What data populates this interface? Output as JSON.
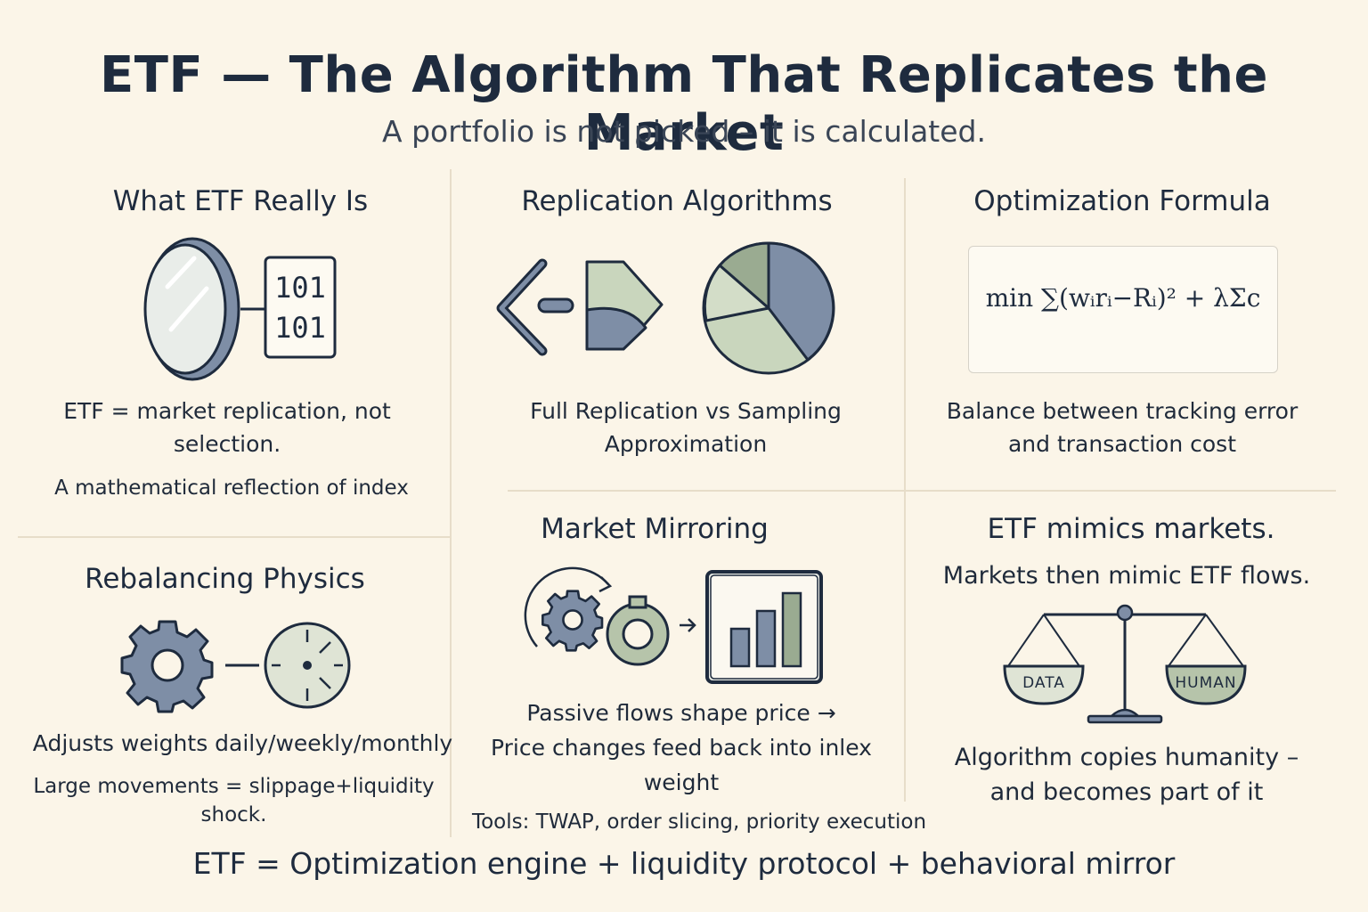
{
  "title": "ETF — The Algorithm That Replicates the Market",
  "subtitle": "A portfolio is not picked – it is calculated.",
  "panels": {
    "what_etf": {
      "heading": "What ETF Really Is",
      "binary_line1": "101",
      "binary_line2": "101",
      "text1_line1": "ETF = market replication, not",
      "text1_line2": "selection.",
      "text2": "A mathematical reflection of index"
    },
    "replication": {
      "heading": "Replication Algorithms",
      "text_line1": "Full Replication vs Sampling",
      "text_line2": "Approximation"
    },
    "optimization": {
      "heading": "Optimization Formula",
      "formula": "min ∑(wᵢrᵢ−Rᵢ)² + λΣc",
      "text_line1": "Balance between tracking error",
      "text_line2": "and transaction cost"
    },
    "rebalancing": {
      "heading": "Rebalancing Physics",
      "text1": "Adjusts weights daily/weekly/monthly",
      "text2_line1": "Large movements = slippage+liquidity",
      "text2_line2": "shock."
    },
    "mirroring": {
      "heading": "Market Mirroring",
      "text_line1": "Passive flows shape price →",
      "text_line2": "Price changes feed back into inlex",
      "text_line3": "weight",
      "tools": "Tools: TWAP, order slicing, priority execution"
    },
    "mimic": {
      "heading": "ETF mimics markets.",
      "subheading": "Markets then mimic ETF flows.",
      "scale_left": "DATA",
      "scale_right": "HUMAN",
      "text_line1": "Algorithm copies humanity –",
      "text_line2": "and becomes part of it"
    }
  },
  "footer": "ETF = Optimization engine + liquidity protocol + behavioral mirror",
  "colors": {
    "background": "#fbf5e8",
    "ink": "#1e2b3e",
    "slate": "#7e8ea6",
    "sage": "#c9d6bd",
    "sage_dark": "#9aab91",
    "mirror": "#e9ede9"
  }
}
